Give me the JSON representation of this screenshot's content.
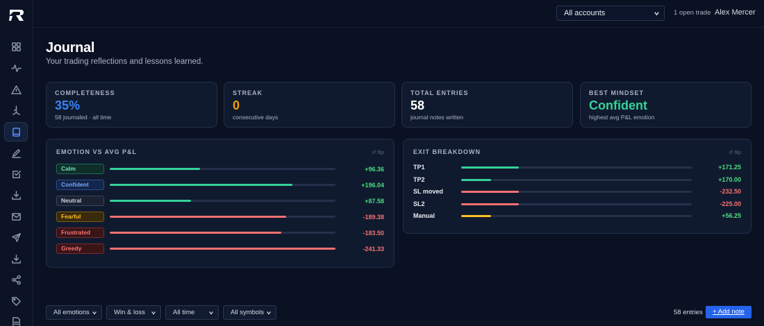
{
  "topbar": {
    "account_select": "All accounts",
    "open_trade": "1 open trade",
    "user_name": "Alex Mercer"
  },
  "sidebar": {
    "items": [
      {
        "icon": "grid-icon"
      },
      {
        "icon": "activity-icon"
      },
      {
        "icon": "warning-icon"
      },
      {
        "icon": "branch-icon"
      },
      {
        "icon": "journal-icon",
        "active": true
      },
      {
        "icon": "pen-icon"
      },
      {
        "icon": "checklist-icon"
      },
      {
        "icon": "download-icon"
      },
      {
        "icon": "mail-icon"
      },
      {
        "icon": "send-icon"
      },
      {
        "icon": "download-icon"
      },
      {
        "icon": "share-icon"
      },
      {
        "icon": "tag-icon"
      },
      {
        "icon": "document-icon"
      }
    ]
  },
  "header": {
    "title": "Journal",
    "subtitle": "Your trading reflections and lessons learned."
  },
  "stats": [
    {
      "label": "Completeness",
      "value": "35%",
      "sub": "58 journaled · all time",
      "color": "#3b82f6"
    },
    {
      "label": "Streak",
      "value": "0",
      "sub": "consecutive days",
      "color": "#f59e0b"
    },
    {
      "label": "Total entries",
      "value": "58",
      "sub": "journal notes written",
      "color": "#ffffff"
    },
    {
      "label": "Best mindset",
      "value": "Confident",
      "sub": "highest avg P&L emotion",
      "color": "#34d399"
    }
  ],
  "emotion_panel": {
    "title": "Emotion vs avg P&L",
    "flip": "↺ flip",
    "rows": [
      {
        "label": "Calm",
        "value": "+96.36",
        "fill": 0.4,
        "bar": "#34d399",
        "badge_bg": "#0f2e2a",
        "badge_border": "#1f6b57",
        "badge_text": "#6ee7b7",
        "val_color": "#4ade80"
      },
      {
        "label": "Confident",
        "value": "+196.04",
        "fill": 0.81,
        "bar": "#34d399",
        "badge_bg": "#12254a",
        "badge_border": "#2b4f8f",
        "badge_text": "#7aa7ff",
        "val_color": "#4ade80"
      },
      {
        "label": "Neutral",
        "value": "+87.58",
        "fill": 0.36,
        "bar": "#34d399",
        "badge_bg": "#1b2233",
        "badge_border": "#3a4560",
        "badge_text": "#c7cfdc",
        "val_color": "#4ade80"
      },
      {
        "label": "Fearful",
        "value": "-189.38",
        "fill": 0.78,
        "bar": "#f87171",
        "badge_bg": "#3a2a0c",
        "badge_border": "#7a5a17",
        "badge_text": "#fbbf24",
        "val_color": "#f87171"
      },
      {
        "label": "Frustrated",
        "value": "-183.50",
        "fill": 0.76,
        "bar": "#f87171",
        "badge_bg": "#3a1518",
        "badge_border": "#7a2a30",
        "badge_text": "#f87171",
        "val_color": "#f87171"
      },
      {
        "label": "Greedy",
        "value": "-241.33",
        "fill": 1.0,
        "bar": "#f87171",
        "badge_bg": "#3a1518",
        "badge_border": "#7a2a30",
        "badge_text": "#f87171",
        "val_color": "#f87171"
      }
    ]
  },
  "exit_panel": {
    "title": "Exit breakdown",
    "flip": "↺ flip",
    "rows": [
      {
        "label": "TP1",
        "value": "+171.25",
        "fill": 0.25,
        "bar": "#34d399",
        "val_color": "#4ade80"
      },
      {
        "label": "TP2",
        "value": "+170.00",
        "fill": 0.13,
        "bar": "#34d399",
        "val_color": "#4ade80"
      },
      {
        "label": "SL moved",
        "value": "-232.50",
        "fill": 0.25,
        "bar": "#f87171",
        "val_color": "#f87171"
      },
      {
        "label": "SL2",
        "value": "-225.00",
        "fill": 0.25,
        "bar": "#f87171",
        "val_color": "#f87171"
      },
      {
        "label": "Manual",
        "value": "+56.25",
        "fill": 0.13,
        "bar": "#fbbf24",
        "val_color": "#4ade80"
      }
    ]
  },
  "filters": {
    "emotions": "All emotions",
    "outcome": "Win & loss",
    "time": "All time",
    "symbols": "All symbols",
    "entries_count": "58 entries",
    "add_note": "+ Add note"
  }
}
